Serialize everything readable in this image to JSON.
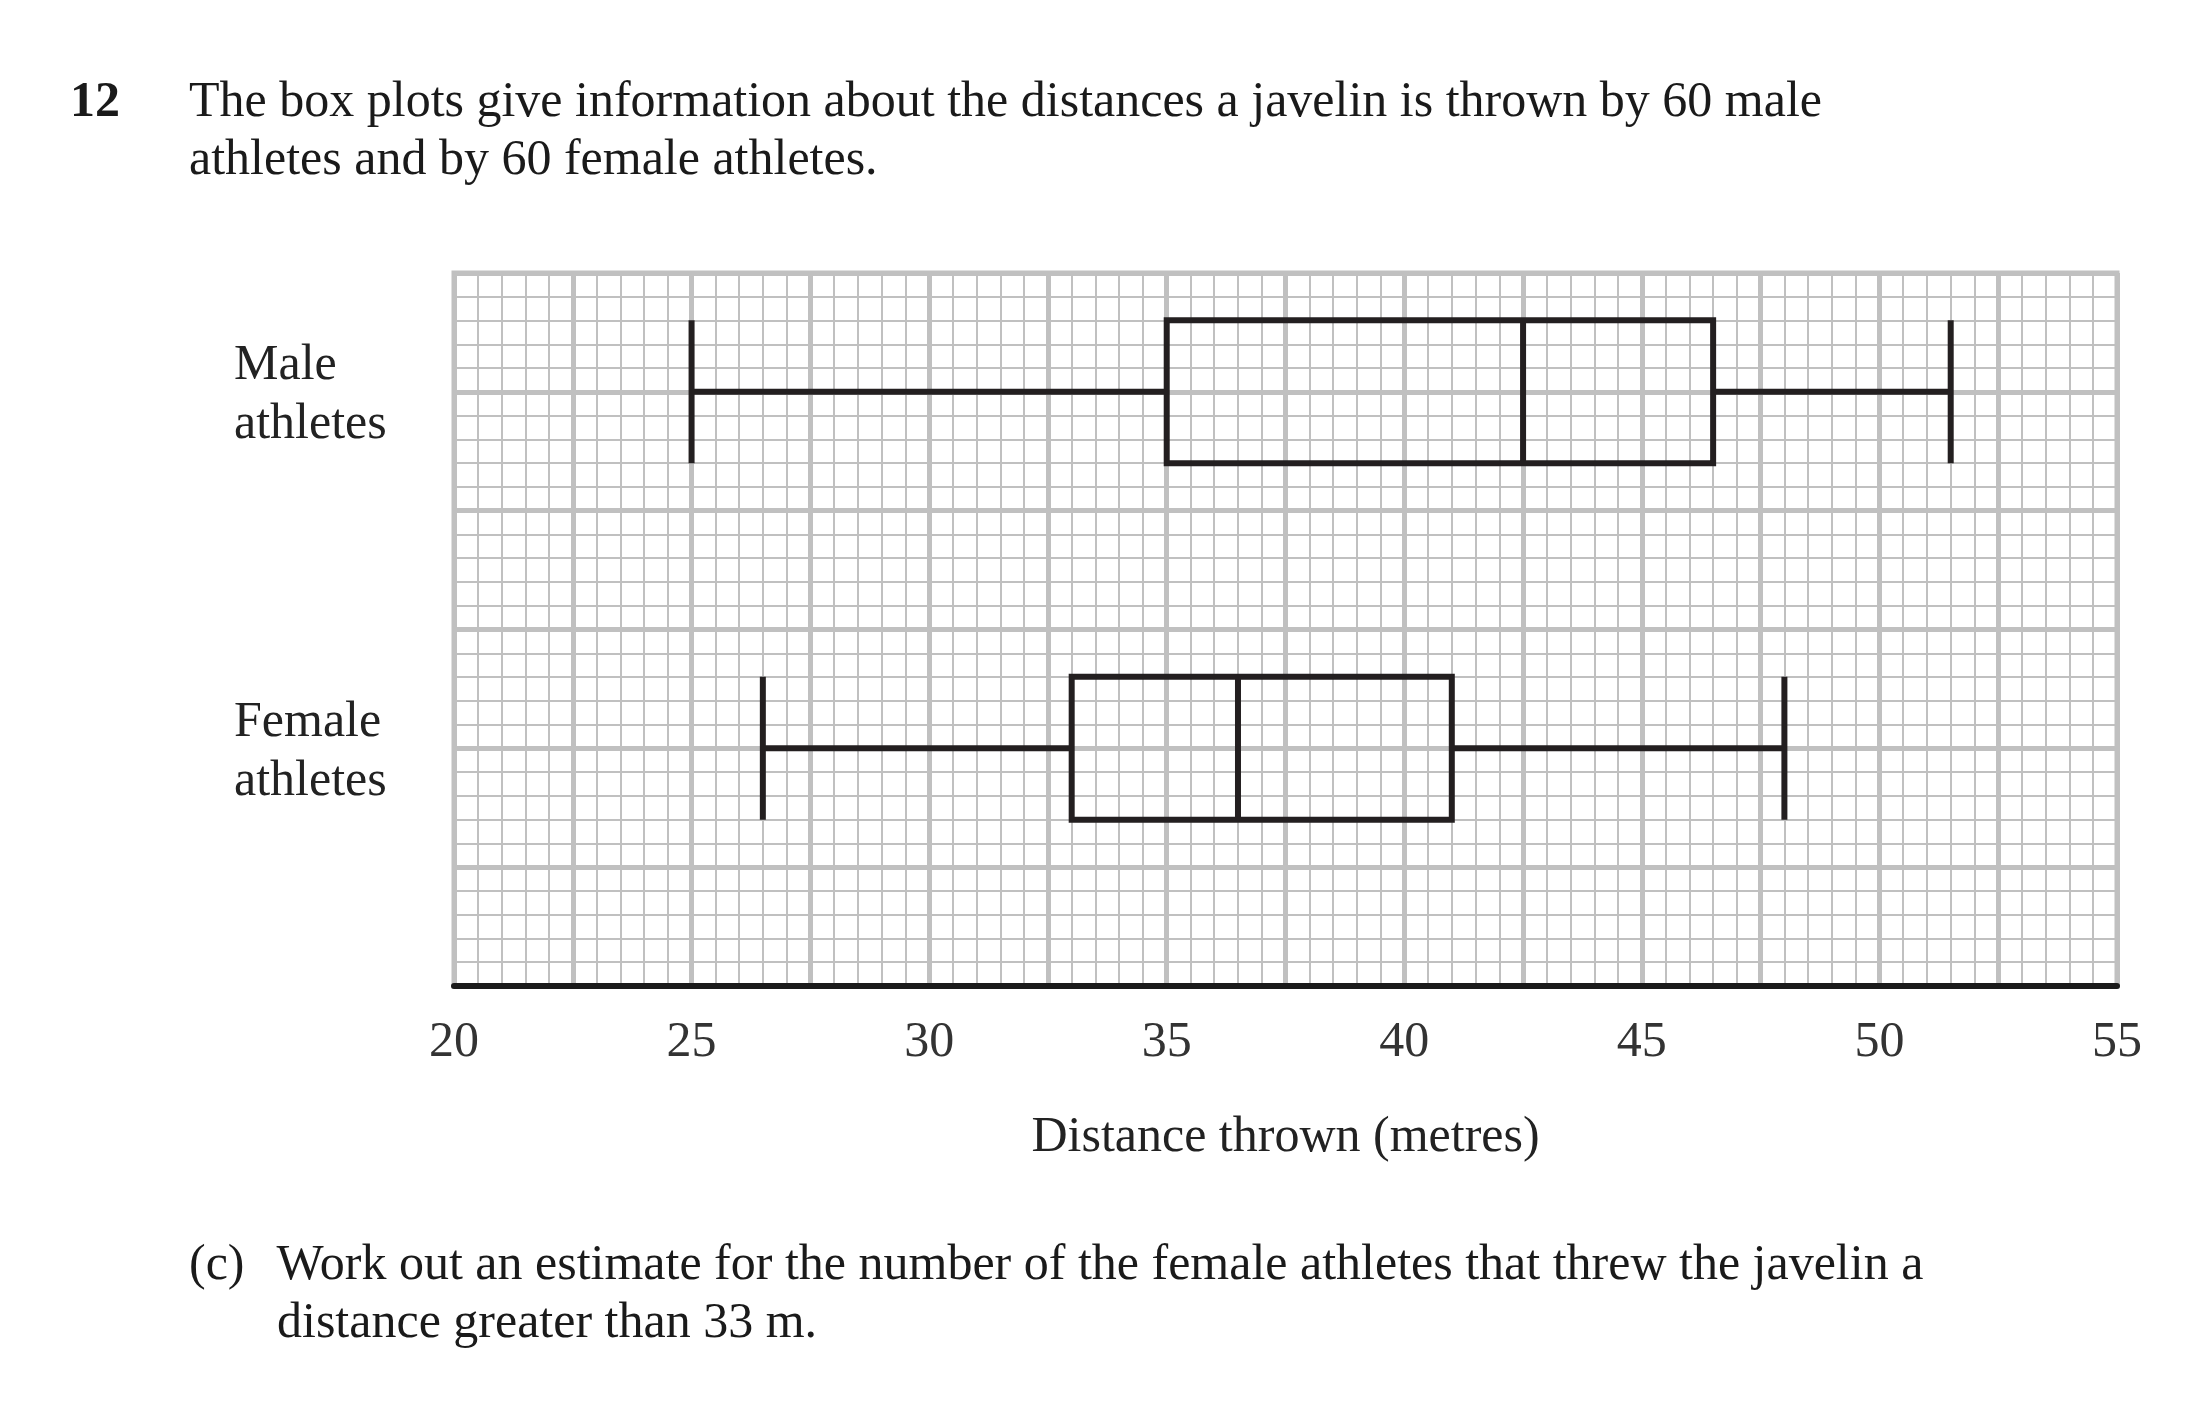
{
  "chart_data": {
    "type": "box",
    "orientation": "horizontal",
    "title": "The box plots give information about the distances a javelin is thrown by 60 male athletes and by 60 female athletes.",
    "xlabel": "Distance thrown (metres)",
    "categories": [
      "Male athletes",
      "Female athletes"
    ],
    "boxes": [
      {
        "low": 25,
        "q1": 35,
        "median": 42.5,
        "q3": 46.5,
        "high": 51.5
      },
      {
        "low": 26.5,
        "q1": 33,
        "median": 36.5,
        "q3": 41,
        "high": 48
      }
    ],
    "color": "#231f20",
    "xlim": [
      20,
      55
    ],
    "xticks": [
      20,
      25,
      30,
      35,
      40,
      45,
      50,
      55
    ],
    "grid": true,
    "annotations": [
      "12",
      "(c) Work out an estimate for the number of the female athletes that threw the javelin a distance greater than 33 m."
    ]
  }
}
